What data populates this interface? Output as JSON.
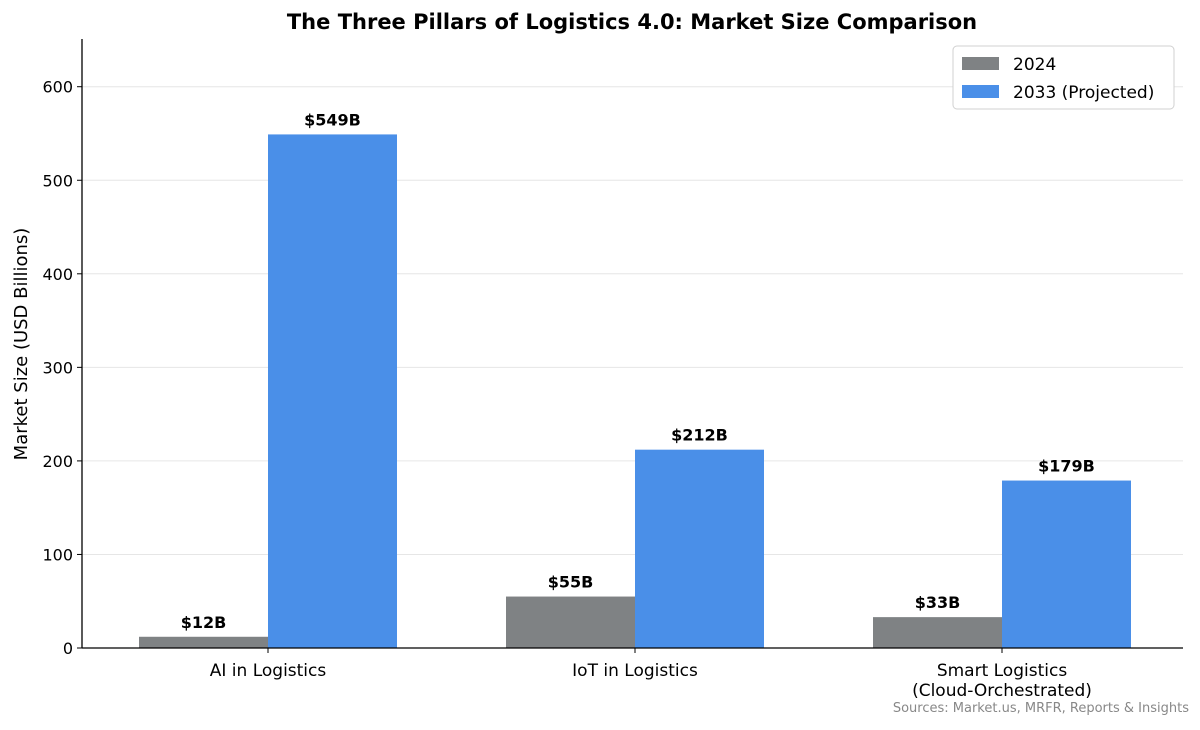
{
  "chart_data": {
    "type": "bar",
    "title": "The Three Pillars of Logistics 4.0: Market Size Comparison",
    "xlabel": "",
    "ylabel": "Market Size (USD Billions)",
    "categories": [
      "AI in Logistics",
      "IoT in Logistics",
      "Smart Logistics\n(Cloud-Orchestrated)"
    ],
    "series": [
      {
        "name": "2024",
        "values": [
          12,
          55,
          33
        ],
        "labels": [
          "$12B",
          "$55B",
          "$33B"
        ],
        "color": "#7f8284"
      },
      {
        "name": "2033 (Projected)",
        "values": [
          549,
          212,
          179
        ],
        "labels": [
          "$549B",
          "$212B",
          "$179B"
        ],
        "color": "#4a8fe8"
      }
    ],
    "ylim": [
      0,
      651
    ],
    "yticks": [
      0,
      100,
      200,
      300,
      400,
      500,
      600
    ],
    "grid": "y",
    "legend": "top-right",
    "source_note": "Sources: Market.us, MRFR, Reports & Insights"
  }
}
